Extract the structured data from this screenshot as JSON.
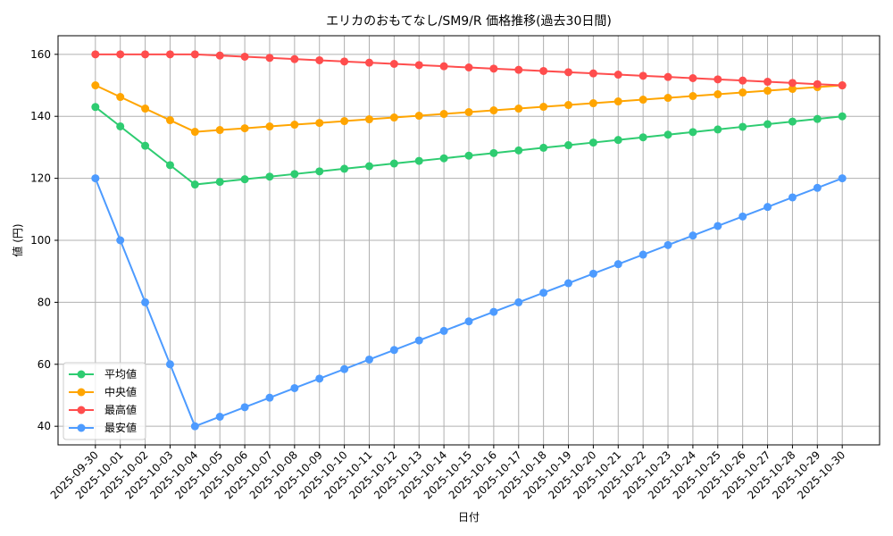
{
  "chart_data": {
    "type": "line",
    "title": "エリカのおもてなし/SM9/R 価格推移(過去30日間)",
    "xlabel": "日付",
    "ylabel": "値 (円)",
    "ylim": [
      34,
      166
    ],
    "yticks": [
      40,
      60,
      80,
      100,
      120,
      140,
      160
    ],
    "grid": true,
    "legend_position": "lower-left",
    "categories": [
      "2025-09-30",
      "2025-10-01",
      "2025-10-02",
      "2025-10-03",
      "2025-10-04",
      "2025-10-05",
      "2025-10-06",
      "2025-10-07",
      "2025-10-08",
      "2025-10-09",
      "2025-10-10",
      "2025-10-11",
      "2025-10-12",
      "2025-10-13",
      "2025-10-14",
      "2025-10-15",
      "2025-10-16",
      "2025-10-17",
      "2025-10-18",
      "2025-10-19",
      "2025-10-20",
      "2025-10-21",
      "2025-10-22",
      "2025-10-23",
      "2025-10-24",
      "2025-10-25",
      "2025-10-26",
      "2025-10-27",
      "2025-10-28",
      "2025-10-29",
      "2025-10-30"
    ],
    "series": [
      {
        "name": "平均値",
        "color": "#2ecc71",
        "values": [
          143,
          136.75,
          130.5,
          124.25,
          118,
          118.85,
          119.69,
          120.54,
          121.38,
          122.23,
          123.08,
          123.92,
          124.77,
          125.62,
          126.46,
          127.31,
          128.15,
          129.0,
          129.85,
          130.69,
          131.54,
          132.38,
          133.23,
          134.08,
          134.92,
          135.77,
          136.62,
          137.46,
          138.31,
          139.15,
          140
        ]
      },
      {
        "name": "中央値",
        "color": "#ffa500",
        "values": [
          150,
          146.25,
          142.5,
          138.75,
          135,
          135.58,
          136.15,
          136.73,
          137.31,
          137.88,
          138.46,
          139.04,
          139.62,
          140.19,
          140.77,
          141.35,
          141.92,
          142.5,
          143.08,
          143.65,
          144.23,
          144.81,
          145.38,
          145.96,
          146.54,
          147.12,
          147.69,
          148.27,
          148.85,
          149.42,
          150
        ]
      },
      {
        "name": "最高値",
        "color": "#ff4d4d",
        "values": [
          160,
          160,
          160,
          160,
          160,
          159.62,
          159.23,
          158.85,
          158.46,
          158.08,
          157.69,
          157.31,
          156.92,
          156.54,
          156.15,
          155.77,
          155.38,
          155.0,
          154.62,
          154.23,
          153.85,
          153.46,
          153.08,
          152.69,
          152.31,
          151.92,
          151.54,
          151.15,
          150.77,
          150.38,
          150
        ]
      },
      {
        "name": "最安値",
        "color": "#4d9bff",
        "values": [
          120,
          100,
          80,
          60,
          40,
          43.08,
          46.15,
          49.23,
          52.31,
          55.38,
          58.46,
          61.54,
          64.62,
          67.69,
          70.77,
          73.85,
          76.92,
          80.0,
          83.08,
          86.15,
          89.23,
          92.31,
          95.38,
          98.46,
          101.54,
          104.62,
          107.69,
          110.77,
          113.85,
          116.92,
          120
        ]
      }
    ]
  }
}
